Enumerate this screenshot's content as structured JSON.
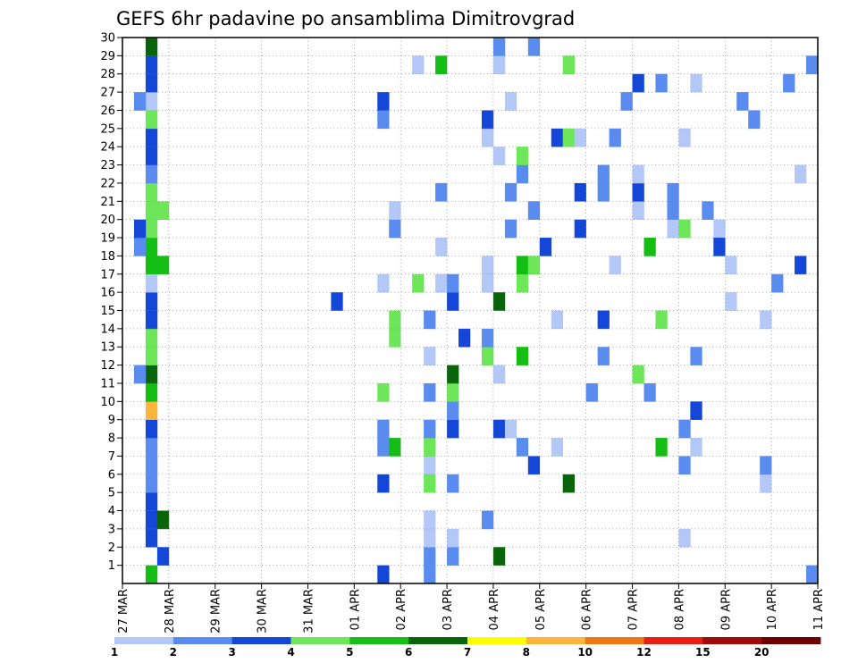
{
  "chart_data": {
    "type": "heatmap",
    "title": "GEFS 6hr padavine po ansamblima Dimitrovgrad",
    "y_ticks": [
      "1",
      "2",
      "3",
      "4",
      "5",
      "6",
      "7",
      "8",
      "9",
      "10",
      "11",
      "12",
      "13",
      "14",
      "15",
      "16",
      "17",
      "18",
      "19",
      "20",
      "21",
      "22",
      "23",
      "24",
      "25",
      "26",
      "27",
      "28",
      "29",
      "30"
    ],
    "ylim": [
      0,
      30
    ],
    "x_tick_labels": [
      "27 MAR",
      "28 MAR",
      "29 MAR",
      "30 MAR",
      "31 MAR",
      "01 APR",
      "02 APR",
      "03 APR",
      "04 APR",
      "05 APR",
      "06 APR",
      "07 APR",
      "08 APR",
      "09 APR",
      "10 APR",
      "11 APR"
    ],
    "time_steps": 60,
    "grid": true,
    "legend": {
      "placement": "bottom",
      "boundaries": [
        "1",
        "2",
        "3",
        "4",
        "5",
        "6",
        "7",
        "8",
        "10",
        "12",
        "15",
        "20"
      ],
      "colors": [
        "#b4c8f8",
        "#5a8cf0",
        "#1446d8",
        "#6ee65a",
        "#14be14",
        "#0a640a",
        "#ffff00",
        "#ffb43c",
        "#f07814",
        "#e61e14",
        "#a00a0a",
        "#6e0000"
      ]
    },
    "cells": [
      {
        "t": 2,
        "m": 0,
        "c": 4
      },
      {
        "t": 3,
        "m": 1,
        "c": 2
      },
      {
        "t": 2,
        "m": 2,
        "c": 2
      },
      {
        "t": 2,
        "m": 3,
        "c": 2
      },
      {
        "t": 2,
        "m": 4,
        "c": 2
      },
      {
        "t": 2,
        "m": 5,
        "c": 1
      },
      {
        "t": 2,
        "m": 6,
        "c": 1
      },
      {
        "t": 2,
        "m": 7,
        "c": 1
      },
      {
        "t": 2,
        "m": 8,
        "c": 2
      },
      {
        "t": 2,
        "m": 9,
        "c": 7
      },
      {
        "t": 2,
        "m": 10,
        "c": 4
      },
      {
        "t": 2,
        "m": 11,
        "c": 5
      },
      {
        "t": 2,
        "m": 12,
        "c": 3
      },
      {
        "t": 2,
        "m": 13,
        "c": 3
      },
      {
        "t": 2,
        "m": 14,
        "c": 2
      },
      {
        "t": 2,
        "m": 15,
        "c": 2
      },
      {
        "t": 2,
        "m": 16,
        "c": 0
      },
      {
        "t": 2,
        "m": 17,
        "c": 4
      },
      {
        "t": 2,
        "m": 18,
        "c": 4
      },
      {
        "t": 2,
        "m": 19,
        "c": 3
      },
      {
        "t": 2,
        "m": 20,
        "c": 3
      },
      {
        "t": 2,
        "m": 21,
        "c": 3
      },
      {
        "t": 2,
        "m": 22,
        "c": 1
      },
      {
        "t": 2,
        "m": 23,
        "c": 2
      },
      {
        "t": 2,
        "m": 24,
        "c": 2
      },
      {
        "t": 2,
        "m": 25,
        "c": 3
      },
      {
        "t": 2,
        "m": 26,
        "c": 0
      },
      {
        "t": 2,
        "m": 27,
        "c": 2
      },
      {
        "t": 2,
        "m": 28,
        "c": 2
      },
      {
        "t": 2,
        "m": 29,
        "c": 5
      },
      {
        "t": 1,
        "m": 18,
        "c": 1
      },
      {
        "t": 1,
        "m": 11,
        "c": 1
      },
      {
        "t": 1,
        "m": 26,
        "c": 1
      },
      {
        "t": 1,
        "m": 19,
        "c": 2
      },
      {
        "t": 3,
        "m": 3,
        "c": 5
      },
      {
        "t": 3,
        "m": 17,
        "c": 4
      },
      {
        "t": 3,
        "m": 20,
        "c": 3
      },
      {
        "t": 18,
        "m": 15,
        "c": 2
      },
      {
        "t": 22,
        "m": 0,
        "c": 2
      },
      {
        "t": 22,
        "m": 5,
        "c": 2
      },
      {
        "t": 22,
        "m": 7,
        "c": 1
      },
      {
        "t": 22,
        "m": 8,
        "c": 1
      },
      {
        "t": 22,
        "m": 10,
        "c": 3
      },
      {
        "t": 22,
        "m": 16,
        "c": 0
      },
      {
        "t": 22,
        "m": 25,
        "c": 1
      },
      {
        "t": 22,
        "m": 26,
        "c": 2
      },
      {
        "t": 23,
        "m": 13,
        "c": 3
      },
      {
        "t": 23,
        "m": 14,
        "c": 3
      },
      {
        "t": 23,
        "m": 7,
        "c": 4
      },
      {
        "t": 23,
        "m": 19,
        "c": 1
      },
      {
        "t": 23,
        "m": 20,
        "c": 0
      },
      {
        "t": 26,
        "m": 6,
        "c": 0
      },
      {
        "t": 25,
        "m": 16,
        "c": 3
      },
      {
        "t": 25,
        "m": 28,
        "c": 0
      },
      {
        "t": 26,
        "m": 5,
        "c": 3
      },
      {
        "t": 26,
        "m": 1,
        "c": 1
      },
      {
        "t": 26,
        "m": 2,
        "c": 0
      },
      {
        "t": 26,
        "m": 3,
        "c": 0
      },
      {
        "t": 26,
        "m": 7,
        "c": 3
      },
      {
        "t": 26,
        "m": 8,
        "c": 1
      },
      {
        "t": 26,
        "m": 10,
        "c": 1
      },
      {
        "t": 26,
        "m": 12,
        "c": 0
      },
      {
        "t": 26,
        "m": 14,
        "c": 1
      },
      {
        "t": 26,
        "m": 0,
        "c": 1
      },
      {
        "t": 27,
        "m": 16,
        "c": 0
      },
      {
        "t": 27,
        "m": 21,
        "c": 1
      },
      {
        "t": 27,
        "m": 28,
        "c": 4
      },
      {
        "t": 27,
        "m": 18,
        "c": 0
      },
      {
        "t": 28,
        "m": 1,
        "c": 1
      },
      {
        "t": 28,
        "m": 2,
        "c": 0
      },
      {
        "t": 28,
        "m": 5,
        "c": 1
      },
      {
        "t": 28,
        "m": 8,
        "c": 2
      },
      {
        "t": 28,
        "m": 9,
        "c": 1
      },
      {
        "t": 28,
        "m": 10,
        "c": 3
      },
      {
        "t": 28,
        "m": 11,
        "c": 5
      },
      {
        "t": 28,
        "m": 15,
        "c": 2
      },
      {
        "t": 28,
        "m": 16,
        "c": 1
      },
      {
        "t": 29,
        "m": 13,
        "c": 2
      },
      {
        "t": 31,
        "m": 3,
        "c": 1
      },
      {
        "t": 31,
        "m": 12,
        "c": 3
      },
      {
        "t": 31,
        "m": 13,
        "c": 1
      },
      {
        "t": 31,
        "m": 16,
        "c": 0
      },
      {
        "t": 31,
        "m": 17,
        "c": 0
      },
      {
        "t": 31,
        "m": 24,
        "c": 0
      },
      {
        "t": 31,
        "m": 25,
        "c": 2
      },
      {
        "t": 32,
        "m": 11,
        "c": 0
      },
      {
        "t": 32,
        "m": 23,
        "c": 0
      },
      {
        "t": 32,
        "m": 28,
        "c": 0
      },
      {
        "t": 32,
        "m": 29,
        "c": 1
      },
      {
        "t": 32,
        "m": 1,
        "c": 5
      },
      {
        "t": 32,
        "m": 8,
        "c": 2
      },
      {
        "t": 32,
        "m": 15,
        "c": 5
      },
      {
        "t": 33,
        "m": 8,
        "c": 0
      },
      {
        "t": 33,
        "m": 19,
        "c": 1
      },
      {
        "t": 33,
        "m": 21,
        "c": 1
      },
      {
        "t": 33,
        "m": 26,
        "c": 0
      },
      {
        "t": 34,
        "m": 7,
        "c": 1
      },
      {
        "t": 34,
        "m": 12,
        "c": 4
      },
      {
        "t": 34,
        "m": 16,
        "c": 3
      },
      {
        "t": 34,
        "m": 17,
        "c": 4
      },
      {
        "t": 34,
        "m": 22,
        "c": 1
      },
      {
        "t": 34,
        "m": 23,
        "c": 3
      },
      {
        "t": 35,
        "m": 6,
        "c": 2
      },
      {
        "t": 35,
        "m": 17,
        "c": 3
      },
      {
        "t": 35,
        "m": 20,
        "c": 1
      },
      {
        "t": 35,
        "m": 29,
        "c": 1
      },
      {
        "t": 36,
        "m": 18,
        "c": 2
      },
      {
        "t": 37,
        "m": 14,
        "c": 0
      },
      {
        "t": 37,
        "m": 7,
        "c": 0
      },
      {
        "t": 37,
        "m": 24,
        "c": 2
      },
      {
        "t": 38,
        "m": 5,
        "c": 5
      },
      {
        "t": 38,
        "m": 24,
        "c": 3
      },
      {
        "t": 38,
        "m": 28,
        "c": 3
      },
      {
        "t": 39,
        "m": 19,
        "c": 2
      },
      {
        "t": 39,
        "m": 21,
        "c": 2
      },
      {
        "t": 39,
        "m": 24,
        "c": 0
      },
      {
        "t": 40,
        "m": 10,
        "c": 1
      },
      {
        "t": 41,
        "m": 12,
        "c": 1
      },
      {
        "t": 41,
        "m": 14,
        "c": 2
      },
      {
        "t": 41,
        "m": 21,
        "c": 1
      },
      {
        "t": 41,
        "m": 22,
        "c": 1
      },
      {
        "t": 42,
        "m": 17,
        "c": 0
      },
      {
        "t": 42,
        "m": 24,
        "c": 1
      },
      {
        "t": 44,
        "m": 20,
        "c": 0
      },
      {
        "t": 44,
        "m": 21,
        "c": 2
      },
      {
        "t": 43,
        "m": 26,
        "c": 1
      },
      {
        "t": 44,
        "m": 27,
        "c": 2
      },
      {
        "t": 44,
        "m": 22,
        "c": 0
      },
      {
        "t": 44,
        "m": 11,
        "c": 3
      },
      {
        "t": 45,
        "m": 18,
        "c": 4
      },
      {
        "t": 45,
        "m": 10,
        "c": 1
      },
      {
        "t": 46,
        "m": 7,
        "c": 4
      },
      {
        "t": 46,
        "m": 27,
        "c": 1
      },
      {
        "t": 46,
        "m": 14,
        "c": 3
      },
      {
        "t": 47,
        "m": 19,
        "c": 0
      },
      {
        "t": 47,
        "m": 20,
        "c": 1
      },
      {
        "t": 47,
        "m": 21,
        "c": 1
      },
      {
        "t": 48,
        "m": 19,
        "c": 3
      },
      {
        "t": 48,
        "m": 6,
        "c": 1
      },
      {
        "t": 48,
        "m": 2,
        "c": 0
      },
      {
        "t": 48,
        "m": 8,
        "c": 1
      },
      {
        "t": 48,
        "m": 24,
        "c": 0
      },
      {
        "t": 49,
        "m": 7,
        "c": 0
      },
      {
        "t": 49,
        "m": 9,
        "c": 2
      },
      {
        "t": 49,
        "m": 12,
        "c": 1
      },
      {
        "t": 49,
        "m": 27,
        "c": 0
      },
      {
        "t": 50,
        "m": 20,
        "c": 1
      },
      {
        "t": 51,
        "m": 19,
        "c": 0
      },
      {
        "t": 51,
        "m": 18,
        "c": 2
      },
      {
        "t": 52,
        "m": 17,
        "c": 0
      },
      {
        "t": 52,
        "m": 15,
        "c": 0
      },
      {
        "t": 53,
        "m": 26,
        "c": 1
      },
      {
        "t": 54,
        "m": 25,
        "c": 1
      },
      {
        "t": 55,
        "m": 5,
        "c": 0
      },
      {
        "t": 55,
        "m": 6,
        "c": 1
      },
      {
        "t": 55,
        "m": 14,
        "c": 0
      },
      {
        "t": 56,
        "m": 16,
        "c": 1
      },
      {
        "t": 57,
        "m": 27,
        "c": 1
      },
      {
        "t": 58,
        "m": 22,
        "c": 0
      },
      {
        "t": 58,
        "m": 17,
        "c": 2
      },
      {
        "t": 59,
        "m": 28,
        "c": 1
      },
      {
        "t": 59,
        "m": 0,
        "c": 1
      }
    ]
  }
}
